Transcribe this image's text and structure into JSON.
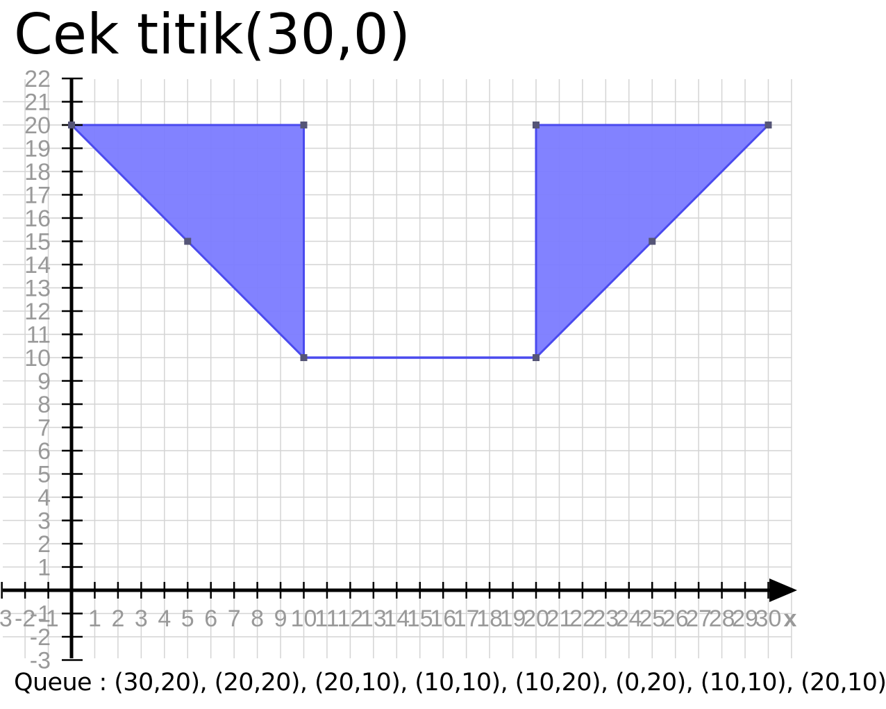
{
  "title": "Cek titik(30,0)",
  "queue_text": "Queue : (30,20), (20,20), (20,10), (10,10), (10,20), (0,20), (10,10), (20,10)",
  "colors": {
    "fill": "#7b7bff",
    "edge": "#4a4aee",
    "grid": "#d4d4d4",
    "axis": "#000000",
    "tick_text": "#999999"
  },
  "chart_data": {
    "type": "area",
    "title": "",
    "xlabel": "x",
    "ylabel": "",
    "xlim": [
      -3,
      31
    ],
    "ylim": [
      -3,
      22
    ],
    "grid": true,
    "x_ticks": [
      -3,
      -2,
      -1,
      1,
      2,
      3,
      4,
      5,
      6,
      7,
      8,
      9,
      10,
      11,
      12,
      13,
      14,
      15,
      16,
      17,
      18,
      19,
      20,
      21,
      22,
      23,
      24,
      25,
      26,
      27,
      28,
      29,
      30
    ],
    "y_ticks": [
      -3,
      -2,
      -1,
      1,
      2,
      3,
      4,
      5,
      6,
      7,
      8,
      9,
      10,
      11,
      12,
      13,
      14,
      15,
      16,
      17,
      18,
      19,
      20,
      21,
      22
    ],
    "polygons": [
      {
        "points": [
          [
            0,
            20
          ],
          [
            10,
            20
          ],
          [
            10,
            10
          ]
        ]
      },
      {
        "points": [
          [
            20,
            20
          ],
          [
            30,
            20
          ],
          [
            20,
            10
          ]
        ]
      }
    ],
    "segments": [
      {
        "from": [
          10,
          10
        ],
        "to": [
          20,
          10
        ]
      }
    ],
    "markers": [
      [
        0,
        20
      ],
      [
        10,
        20
      ],
      [
        10,
        10
      ],
      [
        5,
        15
      ],
      [
        20,
        20
      ],
      [
        30,
        20
      ],
      [
        20,
        10
      ],
      [
        25,
        15
      ]
    ]
  }
}
